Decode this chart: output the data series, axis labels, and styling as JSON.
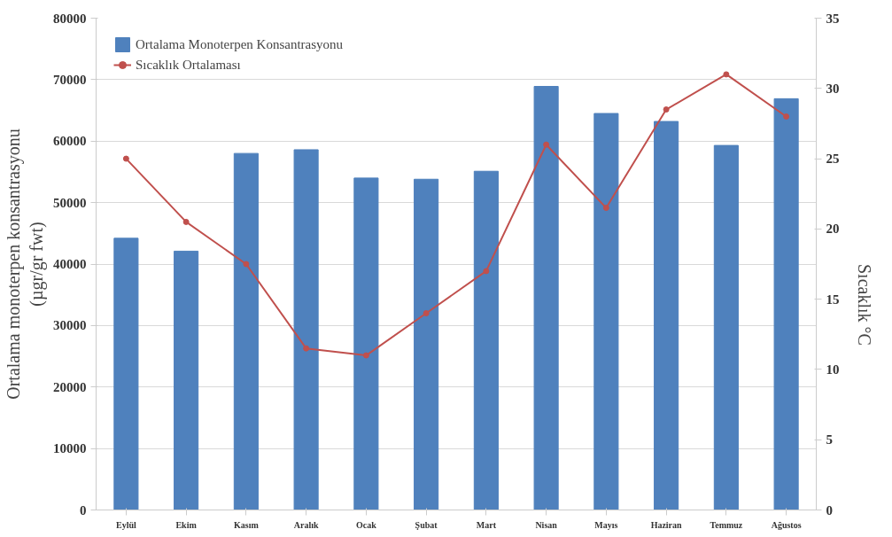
{
  "chart_data": {
    "type": "bar",
    "categories": [
      "Eylül",
      "Ekim",
      "Kasım",
      "Aralık",
      "Ocak",
      "Şubat",
      "Mart",
      "Nisan",
      "Mayıs",
      "Haziran",
      "Temmuz",
      "Ağustos"
    ],
    "ylabel": "Ortalama monoterpen konsantrasyonu\n(µgr/gr fwt)",
    "y2label": "Sıcaklık °C",
    "ylim": [
      0,
      80000
    ],
    "yticks": [
      0,
      10000,
      20000,
      30000,
      40000,
      50000,
      60000,
      70000,
      80000
    ],
    "y2lim": [
      0,
      35
    ],
    "y2ticks": [
      0,
      5,
      10,
      15,
      20,
      25,
      30,
      35
    ],
    "grid": "y",
    "legend": "top left",
    "series": [
      {
        "name": "Ortalama Monoterpen Konsantrasyonu",
        "color": "#4f81bd",
        "values": [
          44200,
          42100,
          58000,
          58600,
          54000,
          53800,
          55100,
          68900,
          64500,
          63200,
          59300,
          66900
        ]
      },
      {
        "name": "Sıcaklık Ortalaması",
        "type": "line",
        "axis": "y2",
        "color": "#c0504d",
        "marker": "circle",
        "values": [
          25,
          20.5,
          17.5,
          11.5,
          11,
          14,
          17,
          26,
          21.5,
          28.5,
          31,
          28
        ]
      }
    ]
  }
}
